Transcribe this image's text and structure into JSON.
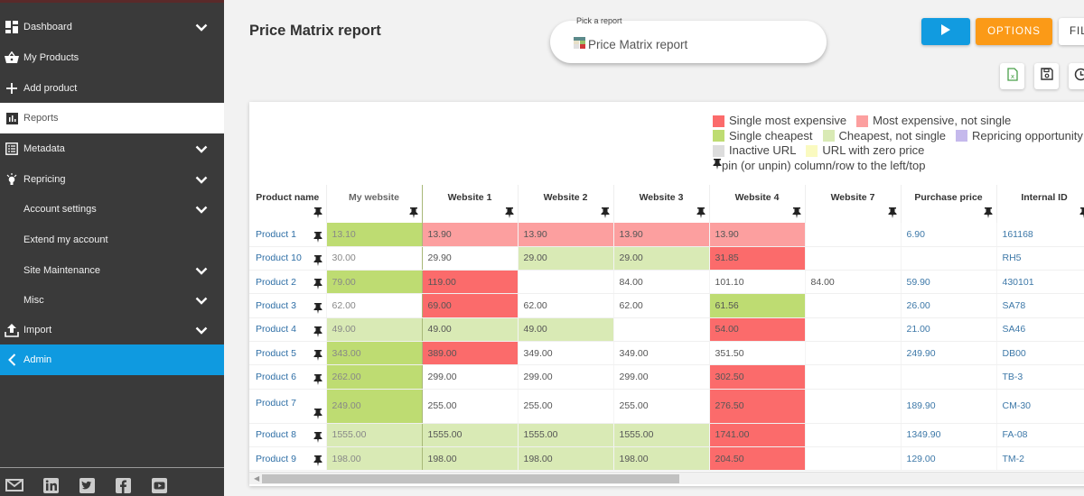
{
  "sidebar": {
    "items": [
      {
        "label": "Dashboard",
        "icon": "dashboard-icon",
        "chevron": true
      },
      {
        "label": "My Products",
        "icon": "basket-icon",
        "chevron": false
      },
      {
        "label": "Add product",
        "icon": "plus-icon",
        "chevron": false
      },
      {
        "label": "Reports",
        "icon": "bar-chart-icon",
        "chevron": false,
        "active": true
      },
      {
        "label": "Metadata",
        "icon": "list-icon",
        "chevron": true
      },
      {
        "label": "Repricing",
        "icon": "lightbulb-icon",
        "chevron": true
      },
      {
        "label": "Account settings",
        "icon": "",
        "chevron": true
      },
      {
        "label": "Extend my account",
        "icon": "",
        "chevron": false
      },
      {
        "label": "Site Maintenance",
        "icon": "",
        "chevron": true
      },
      {
        "label": "Misc",
        "icon": "",
        "chevron": true
      },
      {
        "label": "Import",
        "icon": "upload-icon",
        "chevron": true
      },
      {
        "label": "Admin",
        "icon": "chevron-left-icon",
        "chevron": false
      }
    ],
    "social": [
      "mail-icon",
      "linkedin-icon",
      "twitter-icon",
      "facebook-icon",
      "youtube-icon"
    ]
  },
  "header": {
    "title": "Price Matrix report",
    "picker_label": "Pick a report",
    "picker_value": "Price Matrix report",
    "options_label": "OPTIONS",
    "filter_label": "FILTER",
    "icon_buttons": [
      "excel-export-icon",
      "save-icon",
      "history-icon"
    ]
  },
  "legend": {
    "items": [
      {
        "label": "Single most expensive",
        "color": "#fb6b6b"
      },
      {
        "label": "Most expensive, not single",
        "color": "#fc9f9f"
      },
      {
        "label": "Single cheapest",
        "color": "#bedc72"
      },
      {
        "label": "Cheapest, not single",
        "color": "#d9eab5"
      },
      {
        "label": "Repricing opportunity",
        "color": "#c5b9ec"
      },
      {
        "label": "Inactive URL",
        "color": "#dddddd"
      },
      {
        "label": "URL with zero price",
        "color": "#fafac0"
      }
    ],
    "pin_note": "pin (or unpin) column/row to the left/top"
  },
  "table": {
    "columns": [
      "Product name",
      "My website",
      "Website 1",
      "Website 2",
      "Website 3",
      "Website 4",
      "Website 7",
      "Purchase price",
      "Internal ID"
    ],
    "rows": [
      {
        "name": "Product 1",
        "cells": [
          [
            "13.10",
            "sc"
          ],
          [
            "13.90",
            "me"
          ],
          [
            "13.90",
            "me"
          ],
          [
            "13.90",
            "me"
          ],
          [
            "13.90",
            "me"
          ],
          [
            "",
            ""
          ]
        ],
        "purchase": "6.90",
        "id": "161168"
      },
      {
        "name": "Product 10",
        "cells": [
          [
            "30.00",
            ""
          ],
          [
            "29.90",
            ""
          ],
          [
            "29.00",
            "cns"
          ],
          [
            "29.00",
            "cns"
          ],
          [
            "31.85",
            "sme"
          ],
          [
            "",
            ""
          ]
        ],
        "purchase": "",
        "id": "RH5"
      },
      {
        "name": "Product 2",
        "cells": [
          [
            "79.00",
            "sc"
          ],
          [
            "119.00",
            "sme"
          ],
          [
            "",
            ""
          ],
          [
            "84.00",
            ""
          ],
          [
            "101.10",
            ""
          ],
          [
            "84.00",
            ""
          ]
        ],
        "purchase": "59.90",
        "id": "430101"
      },
      {
        "name": "Product 3",
        "cells": [
          [
            "62.00",
            ""
          ],
          [
            "69.00",
            "sme"
          ],
          [
            "62.00",
            ""
          ],
          [
            "62.00",
            ""
          ],
          [
            "61.56",
            "sc"
          ],
          [
            "",
            ""
          ]
        ],
        "purchase": "26.00",
        "id": "SA78"
      },
      {
        "name": "Product 4",
        "cells": [
          [
            "49.00",
            "cns"
          ],
          [
            "49.00",
            "cns"
          ],
          [
            "49.00",
            "cns"
          ],
          [
            "",
            ""
          ],
          [
            "54.00",
            "sme"
          ],
          [
            "",
            ""
          ]
        ],
        "purchase": "21.00",
        "id": "SA46"
      },
      {
        "name": "Product 5",
        "cells": [
          [
            "343.00",
            "sc"
          ],
          [
            "389.00",
            "sme"
          ],
          [
            "349.00",
            ""
          ],
          [
            "349.00",
            ""
          ],
          [
            "351.50",
            ""
          ],
          [
            "",
            ""
          ]
        ],
        "purchase": "249.90",
        "id": "DB00"
      },
      {
        "name": "Product 6",
        "cells": [
          [
            "262.00",
            "sc"
          ],
          [
            "299.00",
            ""
          ],
          [
            "299.00",
            ""
          ],
          [
            "299.00",
            ""
          ],
          [
            "302.50",
            "sme"
          ],
          [
            "",
            ""
          ]
        ],
        "purchase": "",
        "id": "TB-3"
      },
      {
        "name": "Product 7",
        "cells": [
          [
            "249.00",
            "sc"
          ],
          [
            "255.00",
            ""
          ],
          [
            "255.00",
            ""
          ],
          [
            "255.00",
            ""
          ],
          [
            "276.50",
            "sme"
          ],
          [
            "",
            ""
          ]
        ],
        "purchase": "189.90",
        "id": "CM-30",
        "tall": true
      },
      {
        "name": "Product 8",
        "cells": [
          [
            "1555.00",
            "cns"
          ],
          [
            "1555.00",
            "cns"
          ],
          [
            "1555.00",
            "cns"
          ],
          [
            "1555.00",
            "cns"
          ],
          [
            "1741.00",
            "sme"
          ],
          [
            "",
            ""
          ]
        ],
        "purchase": "1349.90",
        "id": "FA-08"
      },
      {
        "name": "Product 9",
        "cells": [
          [
            "198.00",
            "cns"
          ],
          [
            "198.00",
            "cns"
          ],
          [
            "198.00",
            "cns"
          ],
          [
            "198.00",
            "cns"
          ],
          [
            "204.50",
            "sme"
          ],
          [
            "",
            ""
          ]
        ],
        "purchase": "129.00",
        "id": "TM-2"
      }
    ]
  },
  "colors": {
    "accent_blue": "#0f9ae0",
    "options_orange": "#fb9a17",
    "sidebar_bg": "#3a3a3a"
  }
}
